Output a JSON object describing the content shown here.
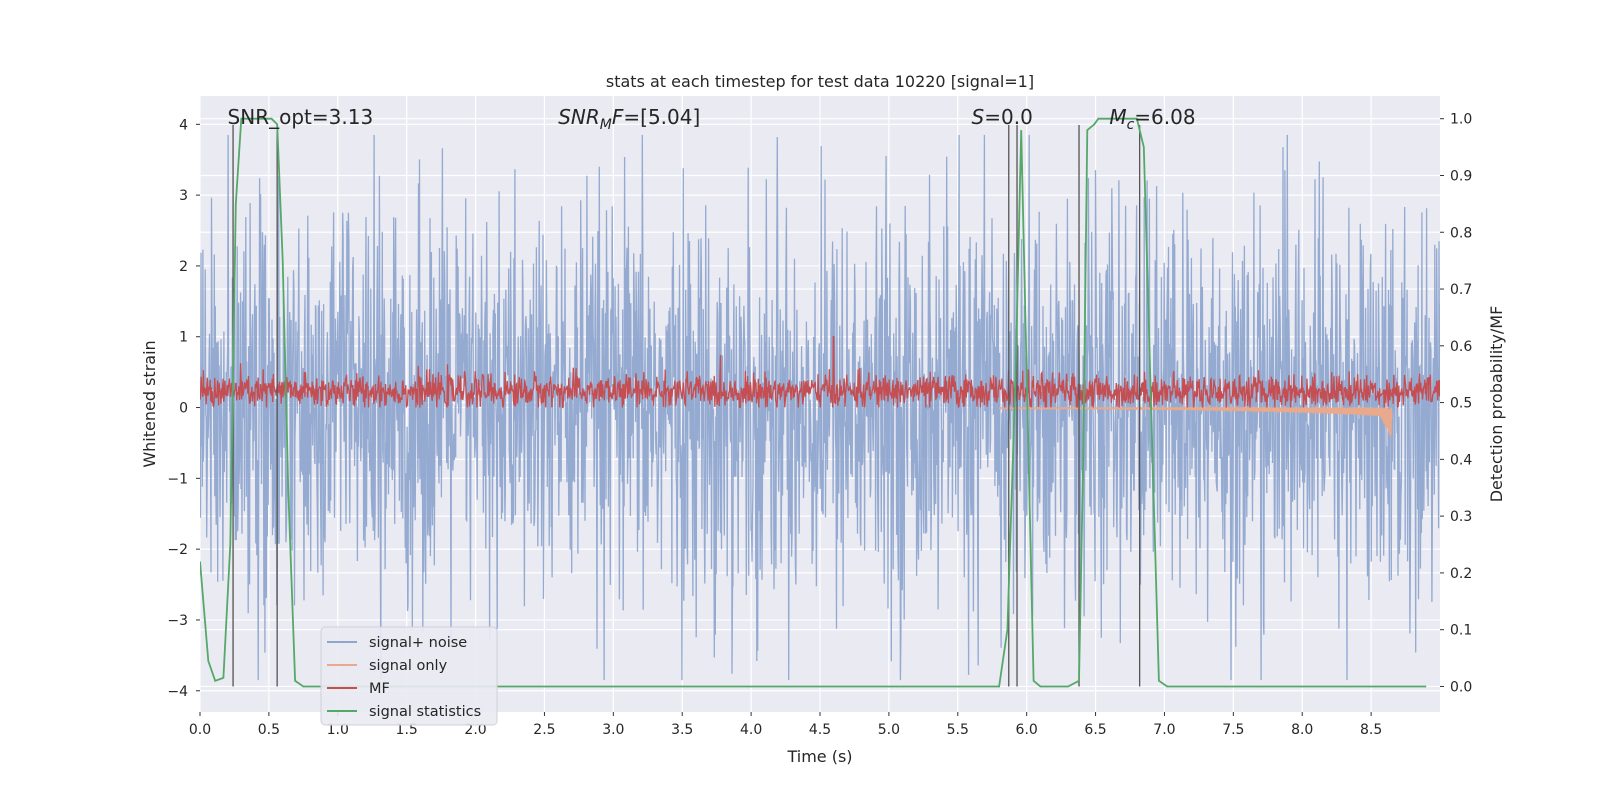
{
  "chart_data": {
    "type": "line",
    "title": "stats at each timestep for test data 10220 [signal=1]",
    "xlabel": "Time (s)",
    "ylabel_left": "Whitened strain",
    "ylabel_right": "Detection probability/MF",
    "xlim": [
      0.0,
      9.0
    ],
    "ylim_left": [
      -4.3,
      4.4
    ],
    "ylim_right": [
      -0.045,
      1.04
    ],
    "x_ticks": [
      "0.0",
      "0.5",
      "1.0",
      "1.5",
      "2.0",
      "2.5",
      "3.0",
      "3.5",
      "4.0",
      "4.5",
      "5.0",
      "5.5",
      "6.0",
      "6.5",
      "7.0",
      "7.5",
      "8.0",
      "8.5"
    ],
    "y_ticks_left": [
      "−4",
      "−3",
      "−2",
      "−1",
      "0",
      "1",
      "2",
      "3",
      "4"
    ],
    "y_ticks_right": [
      "0.0",
      "0.1",
      "0.2",
      "0.3",
      "0.4",
      "0.5",
      "0.6",
      "0.7",
      "0.8",
      "0.9",
      "1.0"
    ],
    "annotations": [
      {
        "text": "SNR_opt=3.13",
        "x": 0.2
      },
      {
        "text": "SNR",
        "sub": "M",
        "suffix": "F=[5.04]",
        "x": 2.6
      },
      {
        "text": "S",
        "suffix": "=0.0",
        "x": 5.6
      },
      {
        "text": "M",
        "sub": "c",
        "suffix": "=6.08",
        "x": 6.6
      }
    ],
    "series": [
      {
        "name": "signal+ noise",
        "axis": "left",
        "color": "#8fa6cf",
        "description": "noise band approx ±2..±3.6"
      },
      {
        "name": "signal only",
        "axis": "left",
        "color": "#e8a98c",
        "chirp_start": 5.8,
        "chirp_end": 8.65,
        "end_amplitude": -0.45
      },
      {
        "name": "MF",
        "axis": "left",
        "color": "#c44e52",
        "center": 0.23,
        "amplitude": 0.25,
        "spike": {
          "x": 4.6,
          "y": 1.0
        }
      },
      {
        "name": "signal statistics",
        "axis": "right",
        "color": "#55a868",
        "x": [
          0.0,
          0.06,
          0.11,
          0.17,
          0.22,
          0.26,
          0.3,
          0.34,
          0.4,
          0.46,
          0.52,
          0.56,
          0.6,
          0.64,
          0.69,
          0.75,
          0.8,
          1.0,
          2.0,
          3.0,
          4.0,
          5.0,
          5.5,
          5.8,
          5.86,
          5.92,
          5.96,
          6.0,
          6.05,
          6.1,
          6.3,
          6.38,
          6.41,
          6.44,
          6.49,
          6.52,
          6.6,
          6.7,
          6.8,
          6.85,
          6.92,
          6.96,
          7.02,
          7.1,
          7.3,
          8.0,
          8.9
        ],
        "y": [
          0.22,
          0.045,
          0.01,
          0.015,
          0.25,
          0.85,
          1.0,
          1.0,
          1.0,
          1.0,
          1.0,
          0.99,
          0.75,
          0.35,
          0.01,
          0.0,
          0.0,
          0.0,
          0.0,
          0.0,
          0.0,
          0.0,
          0.0,
          0.0,
          0.1,
          0.55,
          0.98,
          0.55,
          0.01,
          0.0,
          0.0,
          0.01,
          0.4,
          0.98,
          0.99,
          1.0,
          1.0,
          1.0,
          1.0,
          0.95,
          0.35,
          0.01,
          0.0,
          0.0,
          0.0,
          0.0,
          0.0
        ]
      }
    ],
    "vertical_lines_x": [
      0.24,
      0.56,
      5.87,
      5.93,
      6.38,
      6.82
    ],
    "legend_position": "lower-left",
    "grid": true
  }
}
